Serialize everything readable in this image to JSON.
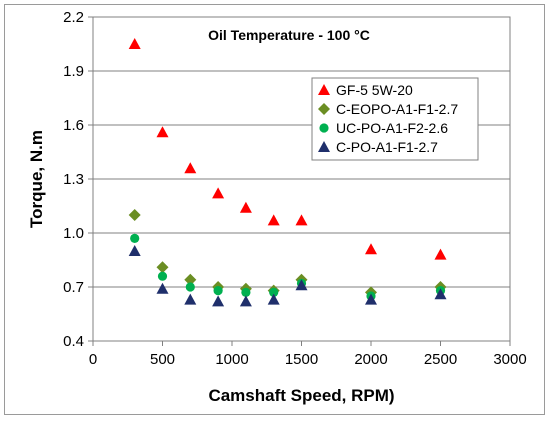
{
  "chart_data": {
    "type": "scatter",
    "title": "",
    "annotation": "Oil Temperature - 100 °C",
    "xlabel": "Camshaft Speed, RPM)",
    "ylabel": "Torque, N.m",
    "xlim": [
      0,
      3000
    ],
    "ylim": [
      0.4,
      2.2
    ],
    "xticks": [
      0,
      500,
      1000,
      1500,
      2000,
      2500,
      3000
    ],
    "xtick_labels": [
      "0",
      "500",
      "1000",
      "1500",
      "2000",
      "2500",
      "3000"
    ],
    "yticks": [
      0.4,
      0.7,
      1.0,
      1.3,
      1.6,
      1.9,
      2.2
    ],
    "ytick_labels": [
      "0.4",
      "0.7",
      "1.0",
      "1.3",
      "1.6",
      "1.9",
      "2.2"
    ],
    "grid": "horizontal",
    "legend_position": "right",
    "series": [
      {
        "name": "GF-5 5W-20",
        "marker": "triangle",
        "color": "#ff0000",
        "x": [
          300,
          500,
          700,
          900,
          1100,
          1300,
          1500,
          2000,
          2500
        ],
        "y": [
          2.05,
          1.56,
          1.36,
          1.22,
          1.14,
          1.07,
          1.07,
          0.91,
          0.88
        ]
      },
      {
        "name": "C-EOPO-A1-F1-2.7",
        "marker": "diamond",
        "color": "#6b8e23",
        "x": [
          300,
          500,
          700,
          900,
          1100,
          1300,
          1500,
          2000,
          2500
        ],
        "y": [
          1.1,
          0.81,
          0.74,
          0.7,
          0.69,
          0.68,
          0.74,
          0.67,
          0.7
        ]
      },
      {
        "name": "UC-PO-A1-F2-2.6",
        "marker": "circle",
        "color": "#00b050",
        "x": [
          300,
          500,
          700,
          900,
          1100,
          1300,
          1500,
          2000,
          2500
        ],
        "y": [
          0.97,
          0.76,
          0.7,
          0.68,
          0.67,
          0.67,
          0.72,
          0.65,
          0.68
        ]
      },
      {
        "name": "C-PO-A1-F1-2.7",
        "marker": "triangle",
        "color": "#1f2f6b",
        "x": [
          300,
          500,
          700,
          900,
          1100,
          1300,
          1500,
          2000,
          2500
        ],
        "y": [
          0.9,
          0.69,
          0.63,
          0.62,
          0.62,
          0.63,
          0.71,
          0.63,
          0.66
        ]
      }
    ]
  }
}
